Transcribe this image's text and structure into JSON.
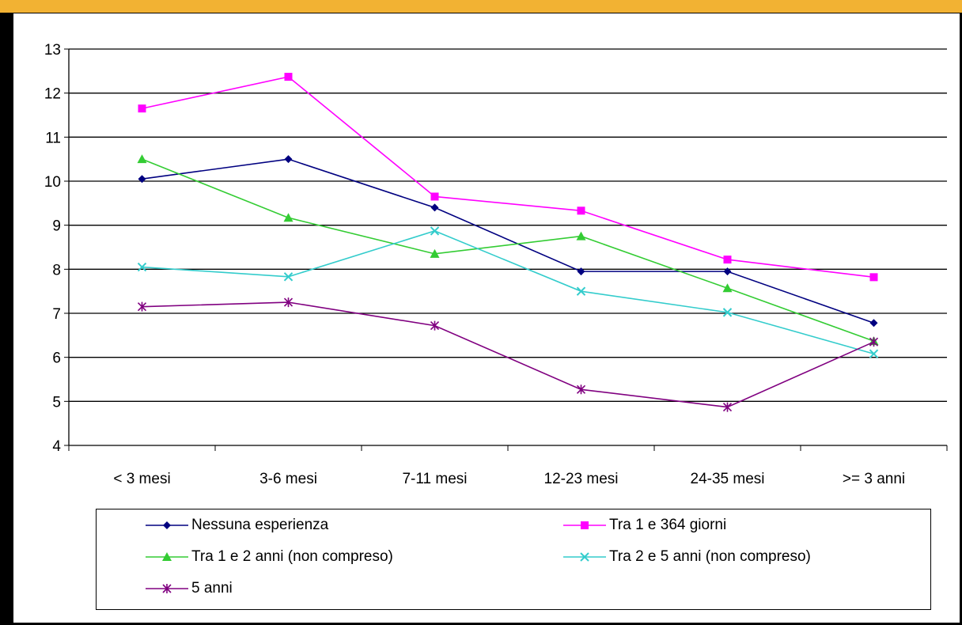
{
  "chart_data": {
    "type": "line",
    "categories": [
      "< 3 mesi",
      "3-6 mesi",
      "7-11 mesi",
      "12-23 mesi",
      "24-35 mesi",
      ">= 3 anni"
    ],
    "ylim": [
      4,
      13
    ],
    "yticks": [
      "4",
      "5",
      "6",
      "7",
      "8",
      "9",
      "10",
      "11",
      "12",
      "13"
    ],
    "grid": true,
    "legend_position": "bottom",
    "series": [
      {
        "name": "Nessuna esperienza",
        "color": "#000080",
        "marker": "diamond",
        "values": [
          10.05,
          10.5,
          9.4,
          7.95,
          7.95,
          6.78
        ]
      },
      {
        "name": "Tra 1 e 364 giorni",
        "color": "#ff00ff",
        "marker": "square",
        "values": [
          11.65,
          12.37,
          9.65,
          9.33,
          8.22,
          7.82
        ]
      },
      {
        "name": "Tra 1 e 2 anni (non compreso)",
        "color": "#33cc33",
        "marker": "triangle",
        "values": [
          10.5,
          9.17,
          8.35,
          8.75,
          7.57,
          6.37
        ]
      },
      {
        "name": "Tra 2 e 5 anni (non compreso)",
        "color": "#33cccc",
        "marker": "x",
        "values": [
          8.05,
          7.83,
          8.87,
          7.5,
          7.02,
          6.08
        ]
      },
      {
        "name": "5 anni",
        "color": "#800080",
        "marker": "star",
        "values": [
          7.15,
          7.25,
          6.72,
          5.27,
          4.87,
          6.35
        ]
      }
    ]
  }
}
